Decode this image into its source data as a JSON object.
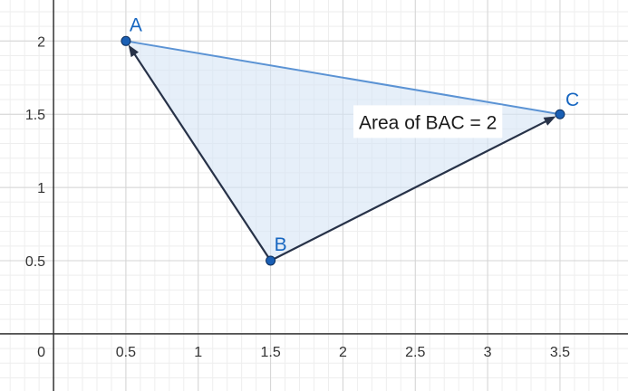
{
  "graph": {
    "x_range": [
      -0.37,
      3.97
    ],
    "y_range": [
      -0.39,
      2.28
    ],
    "x_major_ticks": [
      {
        "value": 0.5,
        "label": "0.5"
      },
      {
        "value": 1,
        "label": "1"
      },
      {
        "value": 1.5,
        "label": "1.5"
      },
      {
        "value": 2,
        "label": "2"
      },
      {
        "value": 2.5,
        "label": "2.5"
      },
      {
        "value": 3,
        "label": "3"
      },
      {
        "value": 3.5,
        "label": "3.5"
      }
    ],
    "y_major_ticks": [
      {
        "value": 0.5,
        "label": "0.5"
      },
      {
        "value": 1,
        "label": "1"
      },
      {
        "value": 1.5,
        "label": "1.5"
      },
      {
        "value": 2,
        "label": "2"
      }
    ],
    "origin_label": "0",
    "minor_step": 0.1,
    "colors": {
      "minor_grid": "#eeeeee",
      "major_grid": "#d4d4d4",
      "axis": "#333333",
      "fill": "#d6e4f5",
      "side_ac": "#5b93d4",
      "vector": "#273248",
      "point": "#1a5fb4",
      "label": "#1565c0"
    }
  },
  "points": [
    {
      "id": "A",
      "label": "A",
      "x": 0.5,
      "y": 2
    },
    {
      "id": "B",
      "label": "B",
      "x": 1.5,
      "y": 0.5
    },
    {
      "id": "C",
      "label": "C",
      "x": 3.5,
      "y": 1.5
    }
  ],
  "vectors": [
    {
      "from": "B",
      "to": "A"
    },
    {
      "from": "B",
      "to": "C"
    }
  ],
  "segments": [
    {
      "from": "A",
      "to": "C"
    }
  ],
  "area_label": {
    "text": "Area of  BAC = 2",
    "anchor_x": 2.11,
    "anchor_y": 1.4
  }
}
